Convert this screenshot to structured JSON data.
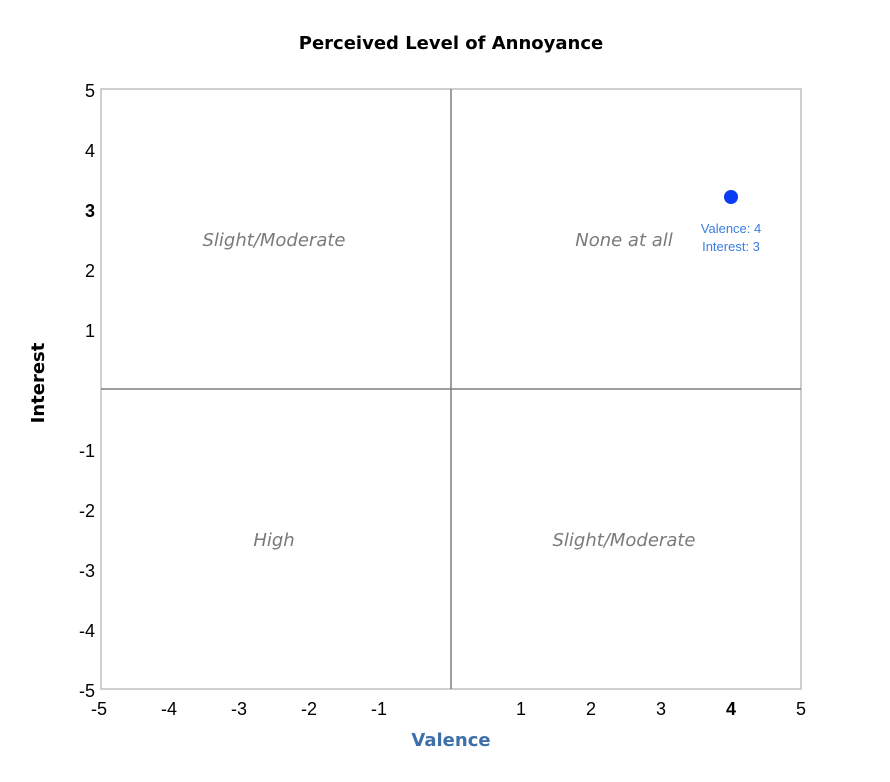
{
  "chart_data": {
    "type": "scatter",
    "title": "Perceived Level of Annoyance",
    "xlabel": "Valence",
    "ylabel": "Interest",
    "xlim": [
      -5,
      5
    ],
    "ylim": [
      -5,
      5
    ],
    "x_ticks": [
      "-5",
      "-4",
      "-3",
      "-2",
      "-1",
      "1",
      "2",
      "3",
      "4",
      "5"
    ],
    "y_ticks": [
      "5",
      "4",
      "3",
      "2",
      "1",
      "-1",
      "-2",
      "-3",
      "-4",
      "-5"
    ],
    "highlighted_x_tick": "4",
    "highlighted_y_tick": "3",
    "quadrant_labels": {
      "top_left": "Slight/Moderate",
      "top_right": "None at all",
      "bottom_left": "High",
      "bottom_right": "Slight/Moderate"
    },
    "points": [
      {
        "x": 4,
        "y": 3,
        "label_line1": "Valence: 4",
        "label_line2": "Interest: 3"
      }
    ],
    "colors": {
      "point": "#0a3cf5",
      "point_label": "#3b7de0",
      "xlabel": "#3d6fa8",
      "axis": "#7f7f7f",
      "frame": "#bfbfbf",
      "quadrant_text": "#7a7a7a"
    }
  }
}
